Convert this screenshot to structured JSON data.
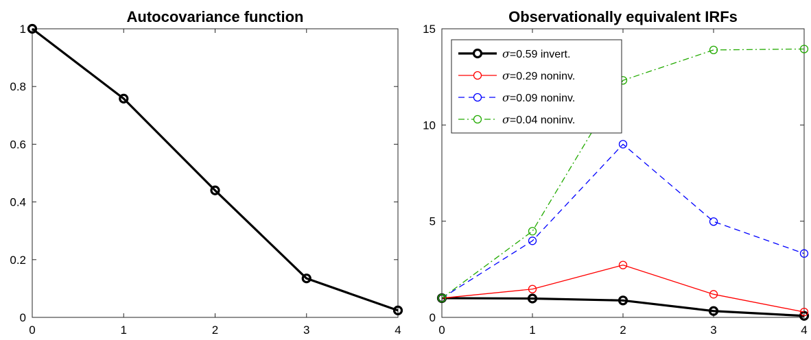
{
  "chart_data": [
    {
      "type": "line",
      "title": "Autocovariance function",
      "xlabel": "",
      "ylabel": "",
      "xlim": [
        0,
        4
      ],
      "ylim": [
        0,
        1
      ],
      "xticks": [
        "0",
        "1",
        "2",
        "3",
        "4"
      ],
      "yticks": [
        "0",
        "0.2",
        "0.4",
        "0.6",
        "0.8",
        "1"
      ],
      "x": [
        0,
        1,
        2,
        3,
        4
      ],
      "series": [
        {
          "values": [
            1.0,
            0.758,
            0.44,
            0.135,
            0.024
          ],
          "color": "#000000",
          "style": "solid",
          "width": "thick",
          "marker": "circle"
        }
      ],
      "grid": false
    },
    {
      "type": "line",
      "title": "Observationally equivalent IRFs",
      "xlabel": "",
      "ylabel": "",
      "xlim": [
        0,
        4
      ],
      "ylim": [
        0,
        15
      ],
      "xticks": [
        "0",
        "1",
        "2",
        "3",
        "4"
      ],
      "yticks": [
        "0",
        "5",
        "10",
        "15"
      ],
      "x": [
        0,
        1,
        2,
        3,
        4
      ],
      "legend_position": "top-left",
      "series": [
        {
          "name_symbol": "σ",
          "name": "=0.59 invert.",
          "values": [
            1.0,
            0.98,
            0.88,
            0.33,
            0.08
          ],
          "color": "#000000",
          "style": "solid",
          "width": "thick",
          "marker": "circle"
        },
        {
          "name_symbol": "σ",
          "name": "=0.29 noninv.",
          "values": [
            1.0,
            1.47,
            2.72,
            1.2,
            0.28
          ],
          "color": "#ff0000",
          "style": "solid",
          "width": "thin",
          "marker": "circle"
        },
        {
          "name_symbol": "σ",
          "name": "=0.09 noninv.",
          "values": [
            1.0,
            3.98,
            9.0,
            4.98,
            3.32
          ],
          "color": "#0000ff",
          "style": "dashed",
          "width": "thin",
          "marker": "circle"
        },
        {
          "name_symbol": "σ",
          "name": "=0.04 noninv.",
          "values": [
            1.0,
            4.48,
            12.32,
            13.9,
            13.95
          ],
          "color": "#22aa00",
          "style": "dashdot",
          "width": "thin",
          "marker": "circle"
        }
      ],
      "grid": false
    }
  ]
}
